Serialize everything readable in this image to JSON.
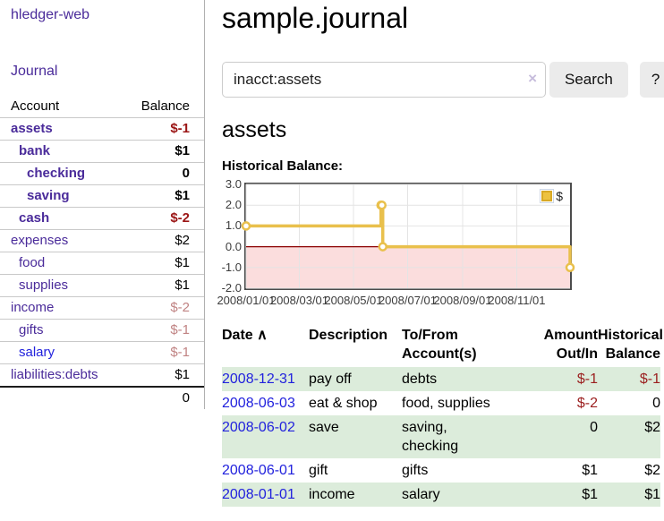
{
  "sidebar": {
    "brand": "hledger-web",
    "journal_link": "Journal",
    "table": {
      "account_header": "Account",
      "balance_header": "Balance"
    },
    "accounts": [
      {
        "name": "assets",
        "level": 1,
        "bold": true,
        "balance": "$-1",
        "neg": "strong"
      },
      {
        "name": "bank",
        "level": 2,
        "bold": true,
        "balance": "$1"
      },
      {
        "name": "checking",
        "level": 3,
        "bold": true,
        "balance": "0"
      },
      {
        "name": "saving",
        "level": 3,
        "bold": true,
        "balance": "$1"
      },
      {
        "name": "cash",
        "level": 2,
        "bold": true,
        "balance": "$-2",
        "neg": "strong"
      },
      {
        "name": "expenses",
        "level": 1,
        "bold": false,
        "balance": "$2"
      },
      {
        "name": "food",
        "level": 2,
        "bold": false,
        "balance": "$1"
      },
      {
        "name": "supplies",
        "level": 2,
        "bold": false,
        "balance": "$1"
      },
      {
        "name": "income",
        "level": 1,
        "bold": false,
        "balance": "$-2",
        "neg": "muted"
      },
      {
        "name": "gifts",
        "level": 2,
        "bold": false,
        "balance": "$-1",
        "neg": "muted"
      },
      {
        "name": "salary",
        "level": 2,
        "bold": false,
        "balance": "$-1",
        "neg": "muted",
        "link": "blue"
      },
      {
        "name": "liabilities:debts",
        "level": 1,
        "bold": false,
        "balance": "$1"
      }
    ],
    "total": "0"
  },
  "main": {
    "title": "sample.journal",
    "search": {
      "value": "inacct:assets",
      "clear_icon": "×",
      "search_button": "Search",
      "help_button": "?"
    },
    "account_heading": "assets",
    "chart_heading": "Historical Balance:"
  },
  "chart_data": {
    "type": "line",
    "step": true,
    "title": "Historical Balance:",
    "series": [
      {
        "name": "$",
        "color": "#e9c04c",
        "points": [
          [
            "2008-01-01",
            1
          ],
          [
            "2008-06-01",
            2
          ],
          [
            "2008-06-02",
            2
          ],
          [
            "2008-06-03",
            0
          ],
          [
            "2008-12-31",
            -1
          ]
        ]
      }
    ],
    "x_ticks": [
      "2008/01/01",
      "2008/03/01",
      "2008/05/01",
      "2008/07/01",
      "2008/09/01",
      "2008/11/01"
    ],
    "y_ticks": [
      "3.0",
      "2.0",
      "1.0",
      "0.0",
      "-1.0",
      "-2.0"
    ],
    "xlim": [
      "2008-01-01",
      "2008-12-31"
    ],
    "ylim": [
      -2,
      3
    ],
    "grid": true,
    "legend_position": "top-right",
    "grid_color": "#e4e4e4",
    "negative_fill": "#fbdddd",
    "zero_line_color": "#8b0000",
    "marker_fill": "#ffffff"
  },
  "register": {
    "headers": {
      "date": "Date",
      "sort_icon": "∧",
      "description": "Description",
      "accounts": "To/From Account(s)",
      "amount": "Amount Out/In",
      "balance": "Historical Balance"
    },
    "rows": [
      {
        "date": "2008-12-31",
        "description": "pay off",
        "accounts": "debts",
        "amount": "$-1",
        "balance": "$-1"
      },
      {
        "date": "2008-06-03",
        "description": "eat & shop",
        "accounts": "food, supplies",
        "amount": "$-2",
        "balance": "0"
      },
      {
        "date": "2008-06-02",
        "description": "save",
        "accounts": "saving, checking",
        "amount": "0",
        "balance": "$2"
      },
      {
        "date": "2008-06-01",
        "description": "gift",
        "accounts": "gifts",
        "amount": "$1",
        "balance": "$2"
      },
      {
        "date": "2008-01-01",
        "description": "income",
        "accounts": "salary",
        "amount": "$1",
        "balance": "$1"
      }
    ]
  },
  "colors": {
    "link_purple": "#4a2b9a",
    "link_blue": "#2222dd",
    "negative_strong": "#9b1515",
    "negative_muted": "#c08383",
    "row_stripe_green": "#dcecdb",
    "chart_gold": "#e9c04c",
    "chart_negative_pink": "#fbdddd",
    "chart_zero_red": "#8b0000"
  }
}
